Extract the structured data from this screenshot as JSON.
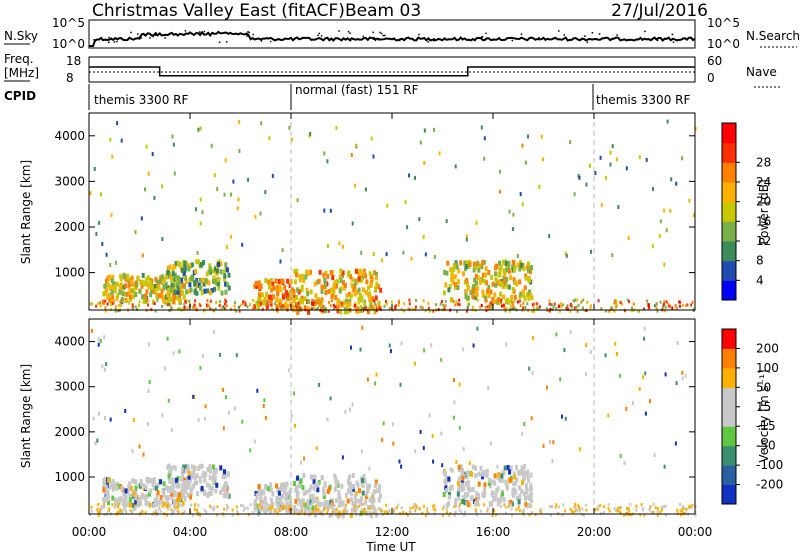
{
  "header": {
    "title": "Christmas Valley East (fitACF)",
    "beam": "Beam 03",
    "date": "27/Jul/2016"
  },
  "noise_panel": {
    "left_label": "N.Sky",
    "right_label": "N.Search",
    "left_ticks": [
      "10^5",
      "10^0"
    ],
    "right_ticks": [
      "10^5",
      "10^0"
    ]
  },
  "freq_panel": {
    "left_label_line1": "Freq.",
    "left_label_line2": "[MHz]",
    "right_label": "Nave",
    "left_ticks": [
      "18",
      "8"
    ],
    "right_ticks": [
      "60",
      "0"
    ]
  },
  "cpid_panel": {
    "label": "CPID",
    "segments": [
      {
        "start_hour": 0,
        "end_hour": 8,
        "text": "themis 3300 RF"
      },
      {
        "start_hour": 8,
        "end_hour": 20,
        "text": "normal (fast) 151 RF"
      },
      {
        "start_hour": 20,
        "end_hour": 24,
        "text": "themis 3300 RF"
      }
    ]
  },
  "power_panel": {
    "ylabel": "Slant Range [km]",
    "yticks": [
      "1000",
      "2000",
      "3000",
      "4000"
    ],
    "colorbar_label": "Power [dB]",
    "colorbar_ticks": [
      "4",
      "8",
      "12",
      "16",
      "20",
      "24",
      "28"
    ],
    "colorbar_colors": [
      "#0000ff",
      "#1f4bb0",
      "#3c8c5a",
      "#7ab04a",
      "#c8c800",
      "#ffb000",
      "#ff8000",
      "#ff3000",
      "#ff0000"
    ]
  },
  "velocity_panel": {
    "ylabel": "Slant Range [km]",
    "yticks": [
      "1000",
      "2000",
      "3000",
      "4000"
    ],
    "colorbar_label": "Velocity [m s⁻¹]",
    "colorbar_ticks": [
      "200",
      "100",
      "50",
      "15",
      "-15",
      "-50",
      "-100",
      "-200"
    ],
    "colorbar_colors": [
      "#1030c0",
      "#2a60a0",
      "#3a9070",
      "#60c840",
      "#c8c8c8",
      "#c8c8c8",
      "#ffb000",
      "#ff8000",
      "#ff0000"
    ]
  },
  "xaxis": {
    "ticks": [
      "00:00",
      "04:00",
      "08:00",
      "12:00",
      "16:00",
      "20:00",
      "00:00"
    ],
    "label": "Time UT"
  },
  "chart_data": {
    "type": "heatmap",
    "title": "Christmas Valley East (fitACF)",
    "x_range_hours": [
      0,
      24
    ],
    "y_range_km": [
      180,
      4500
    ],
    "panels": [
      "Noise (N.Sky / N.Search)",
      "Freq. [MHz] / Nave",
      "CPID",
      "Power [dB]",
      "Velocity [m s-1]"
    ],
    "power_colorbar_range_db": [
      0,
      32
    ],
    "velocity_colorbar_range": [
      -250,
      250
    ],
    "frequency_mhz": [
      {
        "from_hour": 0,
        "to_hour": 2.8,
        "value": 14
      },
      {
        "from_hour": 2.8,
        "to_hour": 15.0,
        "value": 10.5
      },
      {
        "from_hour": 15.0,
        "to_hour": 24,
        "value": 14
      }
    ],
    "echo_regions": [
      {
        "from_hour": 0.5,
        "to_hour": 3.8,
        "range_km": [
          400,
          1000
        ],
        "power_db": 24
      },
      {
        "from_hour": 3.0,
        "to_hour": 5.5,
        "range_km": [
          600,
          1300
        ],
        "power_db": 20
      },
      {
        "from_hour": 6.5,
        "to_hour": 8.0,
        "range_km": [
          300,
          900
        ],
        "power_db": 28
      },
      {
        "from_hour": 8.0,
        "to_hour": 11.5,
        "range_km": [
          180,
          1100
        ],
        "power_db": 26
      },
      {
        "from_hour": 14.0,
        "to_hour": 17.5,
        "range_km": [
          400,
          1300
        ],
        "power_db": 24
      }
    ]
  }
}
